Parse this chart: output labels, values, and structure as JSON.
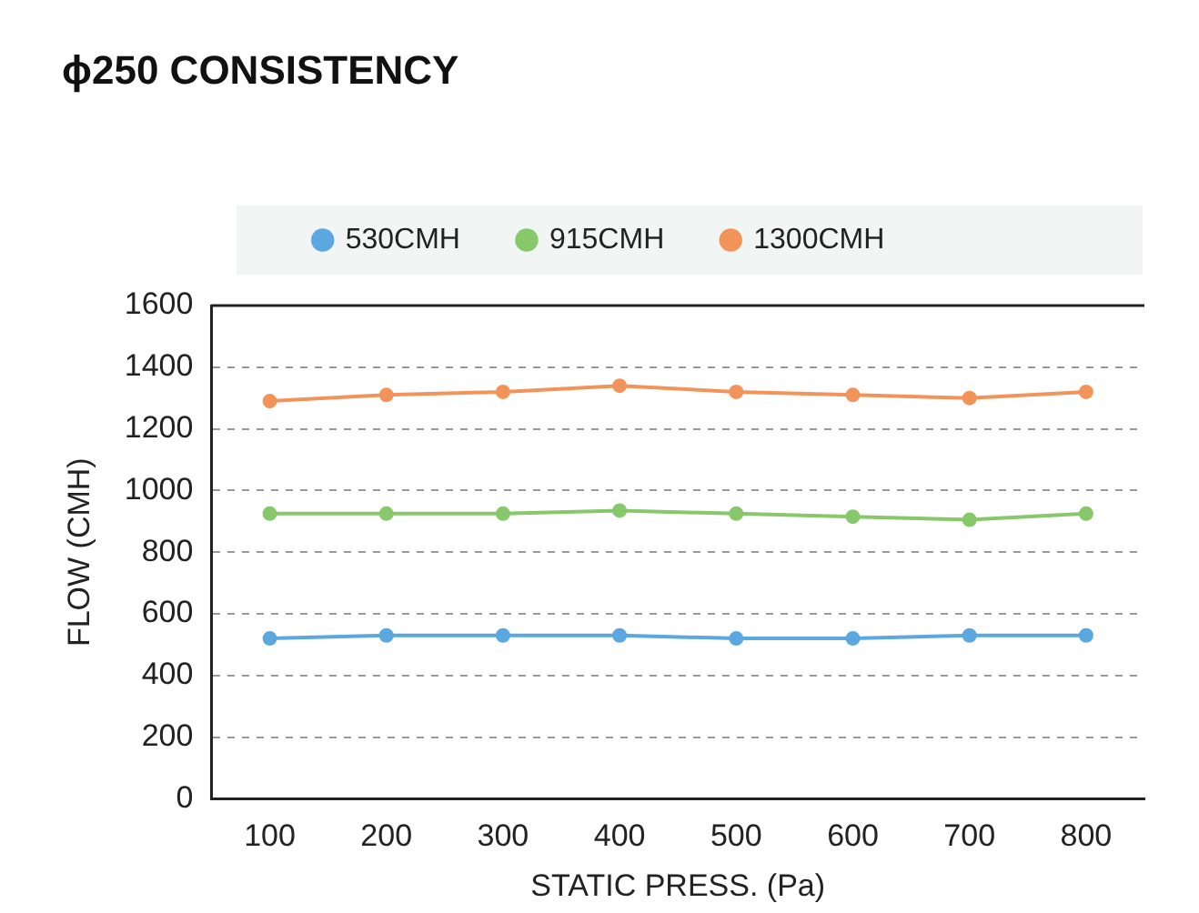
{
  "chart_data": {
    "type": "line",
    "title": "ϕ250 CONSISTENCY",
    "xlabel": "STATIC PRESS. (Pa)",
    "ylabel": "FLOW (CMH)",
    "categories": [
      "100",
      "200",
      "300",
      "400",
      "500",
      "600",
      "700",
      "800"
    ],
    "series": [
      {
        "name": "530CMH",
        "color": "#5ba8e0",
        "values": [
          520,
          530,
          530,
          530,
          520,
          520,
          530,
          530
        ]
      },
      {
        "name": "915CMH",
        "color": "#86c86a",
        "values": [
          925,
          925,
          925,
          935,
          925,
          915,
          905,
          925
        ]
      },
      {
        "name": "1300CMH",
        "color": "#f29459",
        "values": [
          1290,
          1310,
          1320,
          1340,
          1320,
          1310,
          1300,
          1320
        ]
      }
    ],
    "ylim": [
      0,
      1600
    ],
    "yticks": [
      0,
      200,
      400,
      600,
      800,
      1000,
      1200,
      1400,
      1600
    ],
    "grid": "y",
    "legend": "top",
    "marker": "circle",
    "line_style": "solid"
  }
}
